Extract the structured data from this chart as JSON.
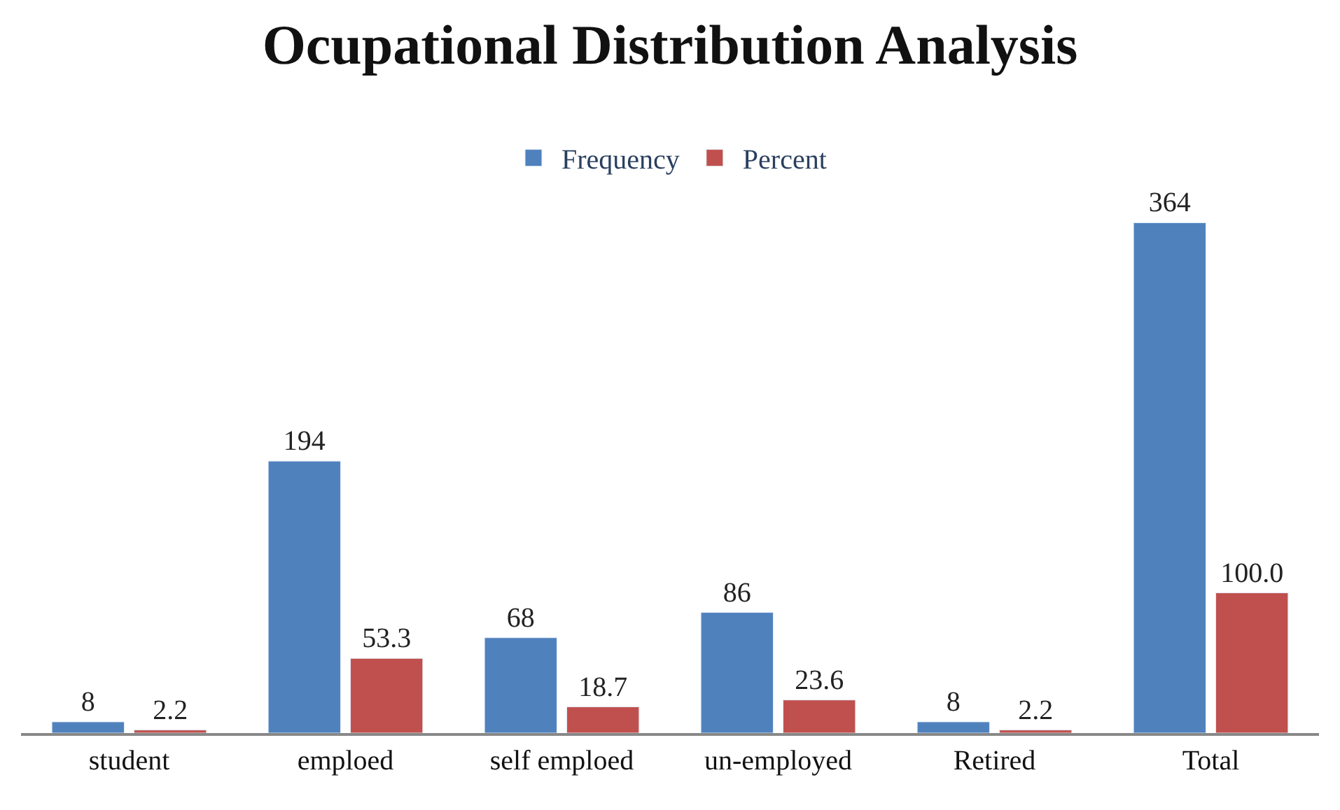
{
  "chart_data": {
    "type": "bar",
    "title": "Ocupational Distribution Analysis",
    "categories": [
      "student",
      "emploed",
      "self emploed",
      "un-employed",
      "Retired",
      "Total"
    ],
    "series": [
      {
        "name": "Frequency",
        "color": "#4f81bd",
        "values": [
          8,
          194,
          68,
          86,
          8,
          364
        ],
        "value_labels": [
          "8",
          "194",
          "68",
          "86",
          "8",
          "364"
        ]
      },
      {
        "name": "Percent",
        "color": "#c0504d",
        "values": [
          2.2,
          53.3,
          18.7,
          23.6,
          2.2,
          100
        ],
        "value_labels": [
          "2.2",
          "53.3",
          "18.7",
          "23.6",
          "2.2",
          "100.0"
        ]
      }
    ],
    "legend": "top",
    "grid": false
  }
}
